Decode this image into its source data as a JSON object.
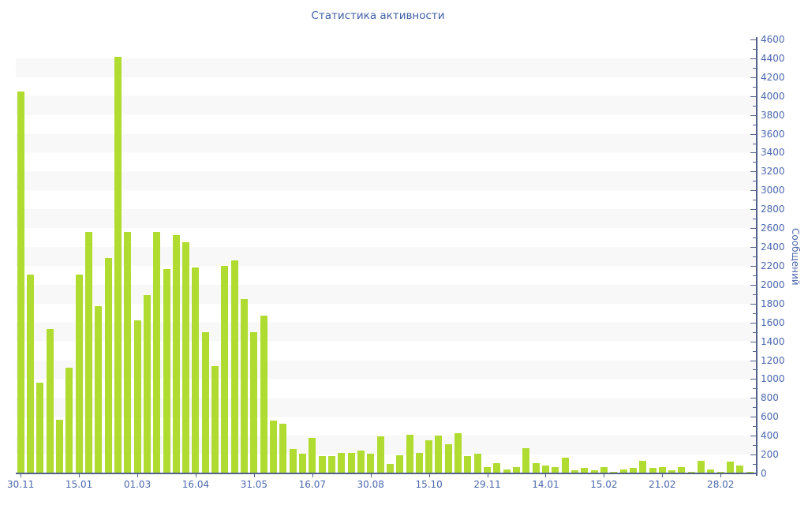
{
  "title": "Статистика активности",
  "colors": {
    "bar": "#b0db30",
    "stripe": "#f8f8f8",
    "axis_line": "#52608c",
    "tick_text": "#4a67ad",
    "title_text": "#3f5fa6"
  },
  "y_axis": {
    "label": "Сообщений",
    "min": 0,
    "max": 4600,
    "major_step": 200,
    "minor_step": 100,
    "tick_labels": [
      "0",
      "200",
      "400",
      "600",
      "800",
      "1000",
      "1200",
      "1400",
      "1600",
      "1800",
      "2000",
      "2200",
      "2400",
      "2600",
      "2800",
      "3000",
      "3200",
      "3400",
      "3600",
      "3800",
      "4000",
      "4200",
      "4400",
      "4600"
    ]
  },
  "x_axis": {
    "tick_labels": [
      "30.11",
      "15.01",
      "01.03",
      "16.04",
      "31.05",
      "16.07",
      "30.08",
      "15.10",
      "29.11",
      "14.01",
      "15.02",
      "21.02",
      "28.02"
    ],
    "label_bar_indices": [
      0,
      6,
      12,
      18,
      24,
      30,
      36,
      42,
      48,
      54,
      60,
      66,
      72
    ]
  },
  "chart_data": {
    "type": "bar",
    "title": "Статистика активности",
    "xlabel": "",
    "ylabel": "Сообщений",
    "ylim": [
      0,
      4600
    ],
    "grid": "striped-bands-200",
    "legend": "none",
    "x_tick_labels": [
      "30.11",
      "15.01",
      "01.03",
      "16.04",
      "31.05",
      "16.07",
      "30.08",
      "15.10",
      "29.11",
      "14.01",
      "15.02",
      "21.02",
      "28.02"
    ],
    "values": [
      4050,
      2110,
      960,
      1530,
      570,
      1120,
      2110,
      2560,
      1770,
      2280,
      4420,
      2560,
      1620,
      1890,
      2560,
      2170,
      2530,
      2450,
      2180,
      1500,
      1140,
      2200,
      2260,
      1850,
      1500,
      1670,
      560,
      530,
      260,
      210,
      375,
      180,
      185,
      220,
      220,
      240,
      210,
      390,
      100,
      195,
      410,
      220,
      355,
      400,
      310,
      430,
      180,
      210,
      65,
      110,
      45,
      65,
      265,
      105,
      80,
      70,
      165,
      35,
      60,
      35,
      65,
      20,
      45,
      55,
      130,
      60,
      65,
      30,
      70,
      15,
      130,
      40,
      15,
      125,
      85,
      15
    ]
  }
}
